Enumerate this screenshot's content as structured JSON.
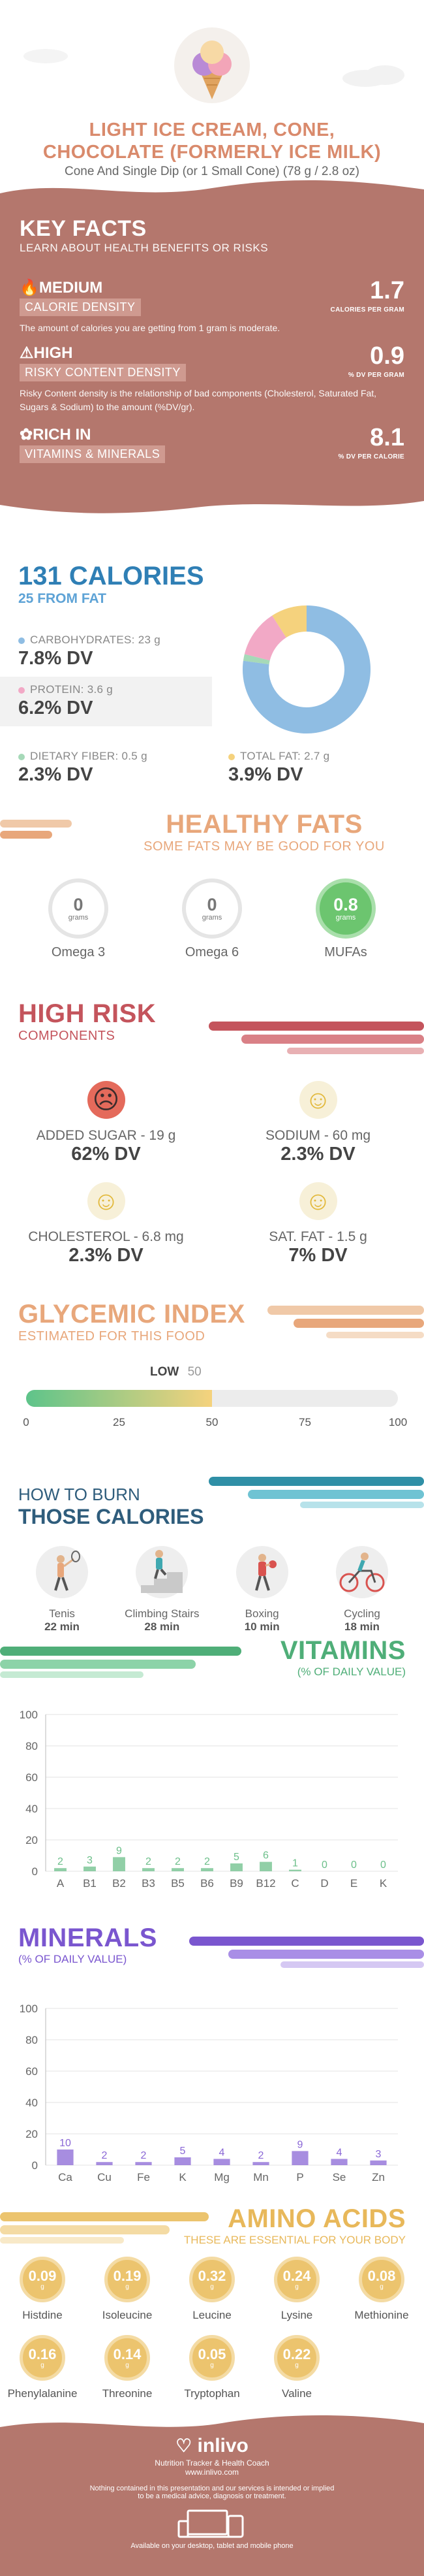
{
  "header": {
    "title_line1": "LIGHT ICE CREAM, CONE,",
    "title_line2": "CHOCOLATE (FORMERLY ICE MILK)",
    "subtitle": "Cone And Single Dip (or 1 Small Cone) (78 g / 2.8 oz)"
  },
  "key_facts": {
    "title": "KEY FACTS",
    "subtitle": "LEARN ABOUT HEALTH BENEFITS OR RISKS",
    "items": [
      {
        "level": "MEDIUM",
        "tag": "CALORIE DENSITY",
        "value": "1.7",
        "unit": "CALORIES PER GRAM",
        "desc": "The amount of calories you are getting from 1 gram is moderate."
      },
      {
        "level": "HIGH",
        "tag": "RISKY CONTENT DENSITY",
        "value": "0.9",
        "unit": "% DV PER GRAM",
        "desc": "Risky Content density is the relationship of bad components (Cholesterol, Saturated Fat, Sugars & Sodium) to the amount (%DV/gr)."
      },
      {
        "level": "RICH IN",
        "tag": "VITAMINS & MINERALS",
        "value": "8.1",
        "unit": "% DV PER CALORIE",
        "desc": ""
      }
    ]
  },
  "calories": {
    "title": "131 CALORIES",
    "subtitle": "25 FROM FAT",
    "macros": [
      {
        "label": "CARBOHYDRATES: 23 g",
        "dv": "7.8% DV",
        "color": "#8fbde3",
        "grams": 23
      },
      {
        "label": "PROTEIN: 3.6 g",
        "dv": "6.2% DV",
        "color": "#f2a9c6",
        "grams": 3.6
      },
      {
        "label": "DIETARY FIBER: 0.5 g",
        "dv": "2.3% DV",
        "color": "#a6d9b8",
        "grams": 0.5
      },
      {
        "label": "TOTAL FAT: 2.7 g",
        "dv": "3.9% DV",
        "color": "#f5d27d",
        "grams": 2.7
      }
    ]
  },
  "healthy_fats": {
    "title": "HEALTHY FATS",
    "subtitle": "SOME FATS MAY BE GOOD FOR YOU",
    "items": [
      {
        "value": "0",
        "unit": "grams",
        "name": "Omega 3",
        "highlight": false
      },
      {
        "value": "0",
        "unit": "grams",
        "name": "Omega 6",
        "highlight": false
      },
      {
        "value": "0.8",
        "unit": "grams",
        "name": "MUFAs",
        "highlight": true
      }
    ]
  },
  "high_risk": {
    "title": "HIGH RISK",
    "subtitle": "COMPONENTS",
    "items": [
      {
        "label": "ADDED SUGAR - 19 g",
        "dv": "62% DV",
        "face": "sad"
      },
      {
        "label": "SODIUM - 60 mg",
        "dv": "2.3% DV",
        "face": "happy"
      },
      {
        "label": "CHOLESTEROL - 6.8 mg",
        "dv": "2.3% DV",
        "face": "happy"
      },
      {
        "label": "SAT. FAT - 1.5 g",
        "dv": "7% DV",
        "face": "happy"
      }
    ]
  },
  "glycemic": {
    "title": "GLYCEMIC INDEX",
    "subtitle": "ESTIMATED FOR THIS FOOD",
    "level": "LOW",
    "value": "50",
    "value_num": 50,
    "ticks": [
      "0",
      "25",
      "50",
      "75",
      "100"
    ]
  },
  "burn": {
    "title_line1": "HOW TO BURN",
    "title_line2": "THOSE CALORIES",
    "items": [
      {
        "name": "Tenis",
        "minutes": "22 min",
        "icon": "tennis-icon"
      },
      {
        "name": "Climbing Stairs",
        "minutes": "28 min",
        "icon": "stairs-icon"
      },
      {
        "name": "Boxing",
        "minutes": "10 min",
        "icon": "boxing-icon"
      },
      {
        "name": "Cycling",
        "minutes": "18 min",
        "icon": "cycling-icon"
      }
    ]
  },
  "vitamins": {
    "title": "VITAMINS",
    "subtitle": "(% OF DAILY VALUE)",
    "chart_data": {
      "type": "bar",
      "categories": [
        "A",
        "B1",
        "B2",
        "B3",
        "B5",
        "B6",
        "B9",
        "B12",
        "C",
        "D",
        "E",
        "K"
      ],
      "values": [
        2,
        3,
        9,
        2,
        2,
        2,
        5,
        6,
        1,
        0,
        0,
        0
      ],
      "yticks": [
        "0",
        "20",
        "40",
        "60",
        "80",
        "100"
      ],
      "ylim": [
        0,
        100
      ],
      "color": "#6cbf8a"
    }
  },
  "minerals": {
    "title": "MINERALS",
    "subtitle": "(% OF DAILY VALUE)",
    "chart_data": {
      "type": "bar",
      "categories": [
        "Ca",
        "Cu",
        "Fe",
        "K",
        "Mg",
        "Mn",
        "P",
        "Se",
        "Zn"
      ],
      "values": [
        10,
        2,
        2,
        5,
        4,
        2,
        9,
        4,
        3
      ],
      "yticks": [
        "0",
        "20",
        "40",
        "60",
        "80",
        "100"
      ],
      "ylim": [
        0,
        100
      ],
      "color": "#8a67d6"
    }
  },
  "amino": {
    "title": "AMINO ACIDS",
    "subtitle": "THESE ARE ESSENTIAL FOR YOUR BODY",
    "unit": "g",
    "items": [
      {
        "value": "0.09",
        "name": "Histdine"
      },
      {
        "value": "0.19",
        "name": "Isoleucine"
      },
      {
        "value": "0.32",
        "name": "Leucine"
      },
      {
        "value": "0.24",
        "name": "Lysine"
      },
      {
        "value": "0.08",
        "name": "Methionine"
      },
      {
        "value": "0.16",
        "name": "Phenylalanine"
      },
      {
        "value": "0.14",
        "name": "Threonine"
      },
      {
        "value": "0.05",
        "name": "Tryptophan"
      },
      {
        "value": "0.22",
        "name": "Valine"
      }
    ]
  },
  "footer": {
    "brand": "inlivo",
    "tagline": "Nutrition Tracker & Health Coach",
    "url": "www.inlivo.com",
    "disclaimer_1": "Nothing contained in this presentation and our services is intended or implied",
    "disclaimer_2": "to be a medical advice, diagnosis or treatment.",
    "devices": "Available on your desktop, tablet and mobile phone"
  }
}
